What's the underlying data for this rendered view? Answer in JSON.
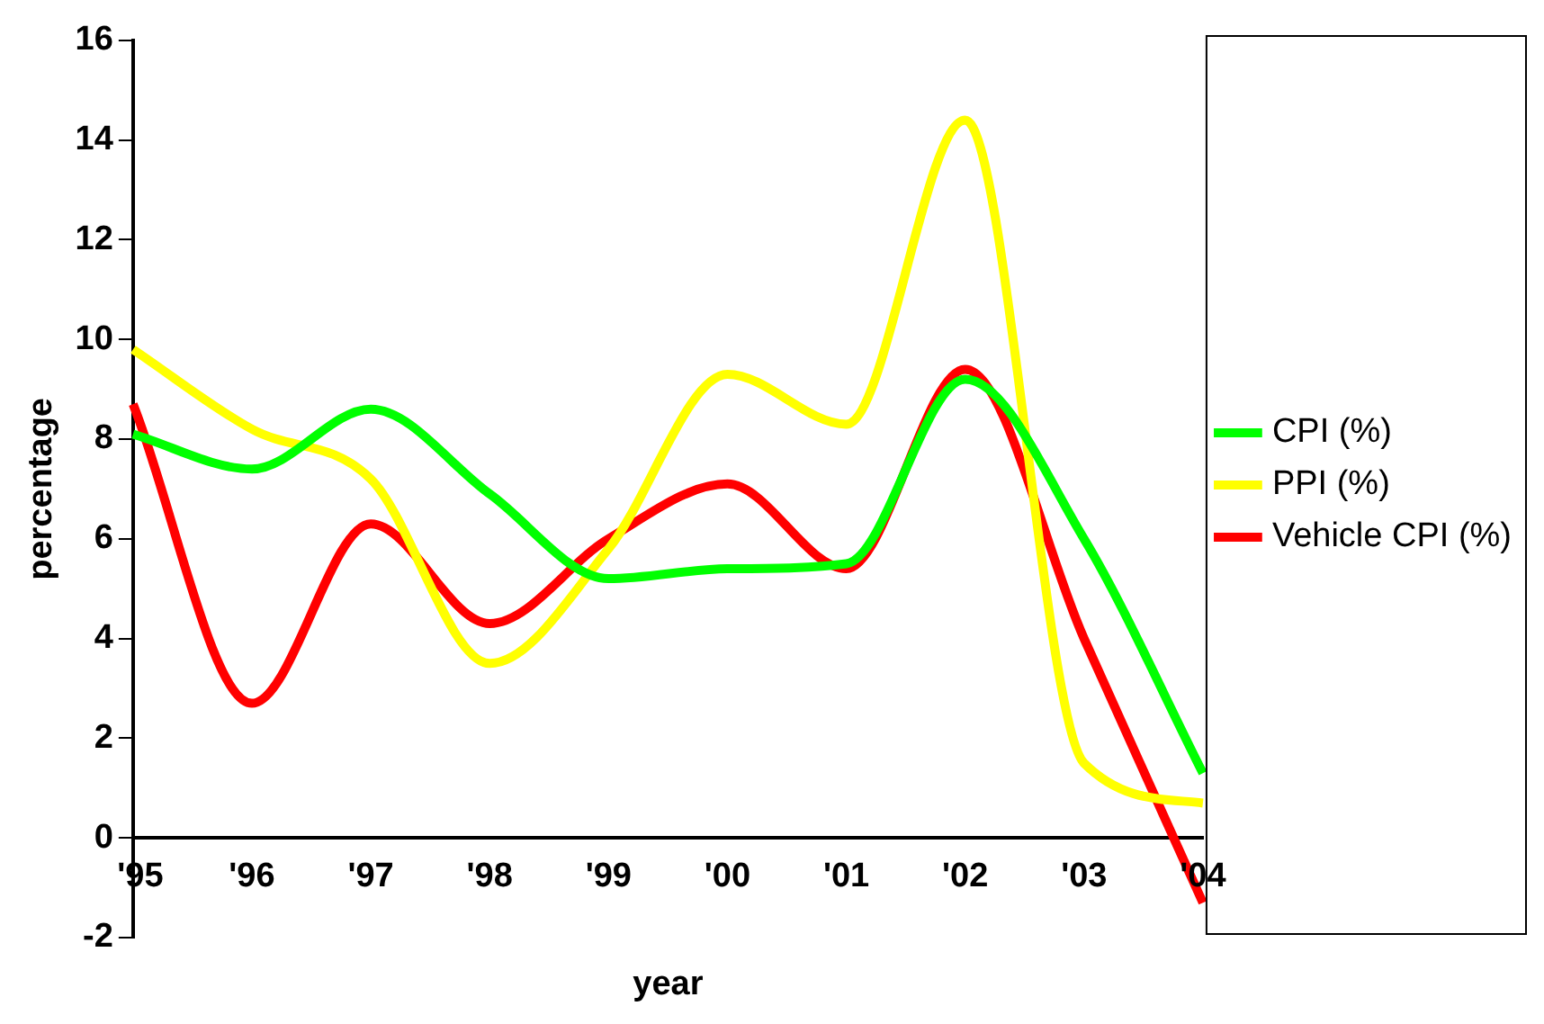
{
  "chart_data": {
    "type": "line",
    "xlabel": "year",
    "ylabel": "percentage",
    "categories": [
      "'95",
      "'96",
      "'97",
      "'98",
      "'99",
      "'00",
      "'01",
      "'02",
      "'03",
      "'04"
    ],
    "series": [
      {
        "name": "CPI (%)",
        "color": "#00ff00",
        "values": [
          8.1,
          7.4,
          8.6,
          6.9,
          5.2,
          5.4,
          5.5,
          9.2,
          6.0,
          1.3
        ]
      },
      {
        "name": "PPI (%)",
        "color": "#ffff00",
        "values": [
          9.8,
          8.2,
          7.2,
          3.5,
          5.8,
          9.3,
          8.3,
          14.4,
          1.5,
          0.7
        ]
      },
      {
        "name": "Vehicle CPI (%)",
        "color": "#ff0000",
        "values": [
          8.7,
          2.7,
          6.3,
          4.3,
          6.0,
          7.1,
          5.4,
          9.4,
          4.0,
          -1.3
        ]
      }
    ],
    "ylim": [
      -2,
      16
    ],
    "yticks": [
      -2,
      0,
      2,
      4,
      6,
      8,
      10,
      12,
      14,
      16
    ],
    "grid": false,
    "legend": "right",
    "marker": "none",
    "line_style": "solid"
  }
}
